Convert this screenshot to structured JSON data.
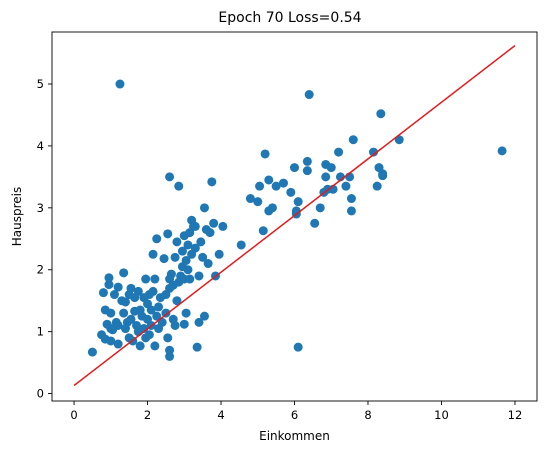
{
  "chart_data": {
    "type": "scatter",
    "title": "Epoch 70 Loss=0.54",
    "xlabel": "Einkommen",
    "ylabel": "Hauspreis",
    "xlim": [
      -0.6,
      12.6
    ],
    "ylim": [
      -0.12,
      5.84
    ],
    "xticks": [
      0,
      2,
      4,
      6,
      8,
      10,
      12
    ],
    "yticks": [
      0,
      1,
      2,
      3,
      4,
      5
    ],
    "xtick_labels": [
      "0",
      "2",
      "4",
      "6",
      "8",
      "10",
      "12"
    ],
    "ytick_labels": [
      "0",
      "1",
      "2",
      "3",
      "4",
      "5"
    ],
    "grid": false,
    "colors": {
      "points": "#1f77b4",
      "line": "#e41a1c"
    },
    "series": [
      {
        "type": "scatter",
        "points": [
          [
            0.5,
            0.67
          ],
          [
            0.75,
            0.95
          ],
          [
            0.8,
            1.63
          ],
          [
            0.85,
            1.35
          ],
          [
            0.85,
            0.88
          ],
          [
            0.9,
            1.12
          ],
          [
            0.95,
            1.76
          ],
          [
            0.95,
            1.87
          ],
          [
            1.0,
            0.85
          ],
          [
            1.0,
            1.05
          ],
          [
            1.0,
            1.3
          ],
          [
            1.05,
            1.03
          ],
          [
            1.1,
            1.6
          ],
          [
            1.15,
            1.15
          ],
          [
            1.2,
            0.8
          ],
          [
            1.2,
            1.1
          ],
          [
            1.2,
            1.72
          ],
          [
            1.25,
            5.0
          ],
          [
            1.3,
            1.5
          ],
          [
            1.35,
            1.95
          ],
          [
            1.35,
            1.3
          ],
          [
            1.4,
            1.05
          ],
          [
            1.4,
            1.48
          ],
          [
            1.45,
            1.15
          ],
          [
            1.5,
            1.6
          ],
          [
            1.5,
            0.9
          ],
          [
            1.55,
            1.7
          ],
          [
            1.55,
            1.2
          ],
          [
            1.6,
            0.85
          ],
          [
            1.65,
            1.55
          ],
          [
            1.65,
            1.33
          ],
          [
            1.7,
            1.1
          ],
          [
            1.75,
            1.65
          ],
          [
            1.75,
            1.0
          ],
          [
            1.8,
            0.77
          ],
          [
            1.8,
            1.35
          ],
          [
            1.85,
            1.25
          ],
          [
            1.9,
            1.55
          ],
          [
            1.9,
            1.05
          ],
          [
            1.95,
            0.9
          ],
          [
            1.95,
            1.85
          ],
          [
            2.0,
            1.2
          ],
          [
            2.0,
            1.45
          ],
          [
            2.05,
            1.6
          ],
          [
            2.05,
            0.95
          ],
          [
            2.1,
            1.1
          ],
          [
            2.1,
            1.35
          ],
          [
            2.15,
            2.25
          ],
          [
            2.15,
            1.65
          ],
          [
            2.2,
            1.85
          ],
          [
            2.2,
            0.77
          ],
          [
            2.25,
            1.25
          ],
          [
            2.25,
            2.5
          ],
          [
            2.3,
            1.4
          ],
          [
            2.3,
            1.05
          ],
          [
            2.35,
            1.55
          ],
          [
            2.4,
            1.15
          ],
          [
            2.45,
            2.18
          ],
          [
            2.5,
            1.3
          ],
          [
            2.5,
            1.6
          ],
          [
            2.55,
            2.58
          ],
          [
            2.55,
            0.9
          ],
          [
            2.6,
            1.7
          ],
          [
            2.6,
            1.85
          ],
          [
            2.6,
            0.6
          ],
          [
            2.6,
            0.7
          ],
          [
            2.6,
            3.5
          ],
          [
            2.65,
            1.93
          ],
          [
            2.7,
            1.2
          ],
          [
            2.7,
            1.75
          ],
          [
            2.75,
            2.2
          ],
          [
            2.75,
            1.1
          ],
          [
            2.8,
            1.5
          ],
          [
            2.8,
            2.45
          ],
          [
            2.85,
            3.35
          ],
          [
            2.85,
            1.8
          ],
          [
            2.9,
            1.9
          ],
          [
            2.95,
            2.05
          ],
          [
            2.95,
            2.3
          ],
          [
            3.0,
            1.12
          ],
          [
            3.0,
            1.85
          ],
          [
            3.0,
            2.55
          ],
          [
            3.05,
            1.3
          ],
          [
            3.05,
            2.15
          ],
          [
            3.1,
            2.0
          ],
          [
            3.1,
            2.4
          ],
          [
            3.15,
            2.6
          ],
          [
            3.15,
            1.85
          ],
          [
            3.2,
            2.8
          ],
          [
            3.2,
            2.25
          ],
          [
            3.25,
            2.7
          ],
          [
            3.3,
            2.35
          ],
          [
            3.3,
            2.7
          ],
          [
            3.35,
            0.75
          ],
          [
            3.4,
            1.15
          ],
          [
            3.4,
            1.9
          ],
          [
            3.45,
            2.45
          ],
          [
            3.5,
            2.2
          ],
          [
            3.55,
            3.0
          ],
          [
            3.55,
            1.25
          ],
          [
            3.6,
            2.65
          ],
          [
            3.65,
            2.1
          ],
          [
            3.7,
            2.6
          ],
          [
            3.75,
            3.42
          ],
          [
            3.8,
            2.75
          ],
          [
            3.85,
            1.9
          ],
          [
            3.95,
            2.25
          ],
          [
            4.05,
            2.7
          ],
          [
            4.55,
            2.4
          ],
          [
            4.8,
            3.15
          ],
          [
            5.0,
            3.1
          ],
          [
            5.05,
            3.35
          ],
          [
            5.15,
            2.63
          ],
          [
            5.2,
            3.87
          ],
          [
            5.3,
            2.95
          ],
          [
            5.3,
            3.45
          ],
          [
            5.4,
            3.0
          ],
          [
            5.5,
            3.35
          ],
          [
            5.7,
            3.4
          ],
          [
            5.9,
            3.25
          ],
          [
            6.0,
            3.65
          ],
          [
            6.05,
            2.9
          ],
          [
            6.05,
            2.95
          ],
          [
            6.1,
            0.75
          ],
          [
            6.1,
            3.1
          ],
          [
            6.35,
            3.6
          ],
          [
            6.35,
            3.75
          ],
          [
            6.4,
            4.83
          ],
          [
            6.55,
            2.75
          ],
          [
            6.7,
            3.0
          ],
          [
            6.8,
            3.25
          ],
          [
            6.85,
            3.7
          ],
          [
            6.85,
            3.5
          ],
          [
            6.9,
            3.3
          ],
          [
            7.0,
            3.65
          ],
          [
            7.05,
            3.3
          ],
          [
            7.2,
            3.9
          ],
          [
            7.25,
            3.5
          ],
          [
            7.4,
            3.35
          ],
          [
            7.5,
            3.5
          ],
          [
            7.55,
            2.95
          ],
          [
            7.55,
            3.15
          ],
          [
            7.6,
            4.1
          ],
          [
            8.15,
            3.9
          ],
          [
            8.25,
            3.35
          ],
          [
            8.3,
            3.65
          ],
          [
            8.35,
            4.52
          ],
          [
            8.4,
            3.52
          ],
          [
            8.4,
            3.55
          ],
          [
            8.85,
            4.1
          ],
          [
            11.65,
            3.92
          ]
        ]
      },
      {
        "type": "line",
        "points": [
          [
            0,
            0.13
          ],
          [
            12,
            5.62
          ]
        ]
      }
    ]
  }
}
